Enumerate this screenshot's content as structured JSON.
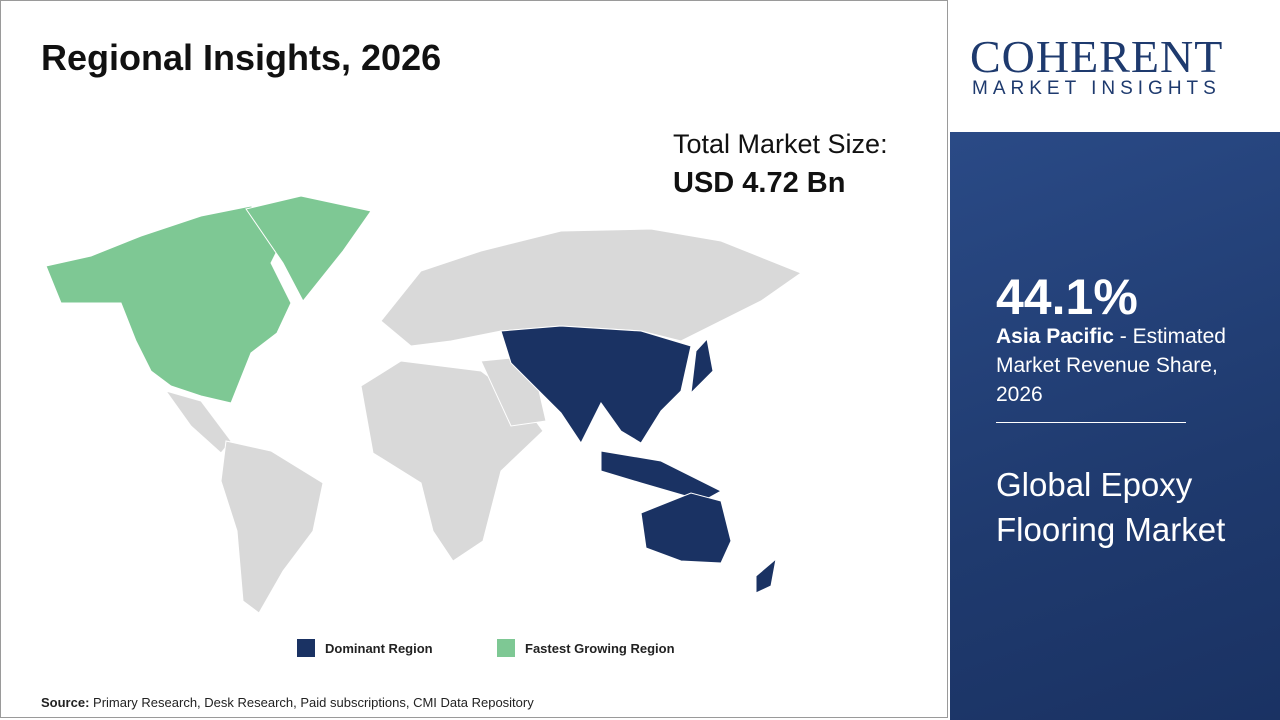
{
  "header": {
    "title": "Regional Insights, 2026"
  },
  "market_size": {
    "label": "Total Market Size:",
    "value": "USD 4.72 Bn"
  },
  "logo": {
    "name": "COHERENT",
    "tagline": "MARKET INSIGHTS"
  },
  "highlight": {
    "share": "44.1%",
    "region": "Asia Pacific",
    "description": " - Estimated Market Revenue Share, 2026"
  },
  "market_name": "Global Epoxy Flooring Market",
  "legend": [
    {
      "label": "Dominant Region"
    },
    {
      "label": "Fastest Growing Region"
    }
  ],
  "source": {
    "label": "Source:",
    "text": " Primary Research, Desk Research, Paid subscriptions, CMI Data Repository"
  }
}
